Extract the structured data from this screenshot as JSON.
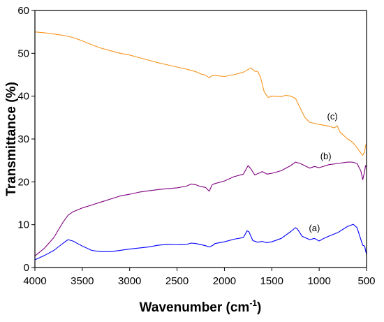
{
  "chart_data": {
    "type": "line",
    "xlabel": "Wavenumber (cm",
    "xlabel_sup": "-1",
    "xlabel_end": ")",
    "ylabel": "Transmittance (%)",
    "xlim": [
      4000,
      500
    ],
    "ylim": [
      0,
      60
    ],
    "x_ticks": [
      4000,
      3500,
      3000,
      2500,
      2000,
      1500,
      1000,
      500
    ],
    "y_ticks": [
      0,
      10,
      20,
      30,
      40,
      50,
      60
    ],
    "series": [
      {
        "label": "(a)",
        "label_pos": [
          1050,
          8.5
        ],
        "color": "#0000ff",
        "points": [
          [
            4000,
            1.8
          ],
          [
            3900,
            2.8
          ],
          [
            3800,
            4
          ],
          [
            3700,
            5.7
          ],
          [
            3650,
            6.5
          ],
          [
            3600,
            6.2
          ],
          [
            3500,
            5
          ],
          [
            3400,
            4
          ],
          [
            3300,
            3.7
          ],
          [
            3200,
            3.7
          ],
          [
            3000,
            4.3
          ],
          [
            2800,
            4.8
          ],
          [
            2700,
            5.2
          ],
          [
            2600,
            5.4
          ],
          [
            2500,
            5.3
          ],
          [
            2400,
            5.4
          ],
          [
            2350,
            5.7
          ],
          [
            2300,
            5.6
          ],
          [
            2200,
            5.1
          ],
          [
            2160,
            4.8
          ],
          [
            2120,
            5.2
          ],
          [
            2100,
            5.6
          ],
          [
            2000,
            6.0
          ],
          [
            1900,
            6.6
          ],
          [
            1800,
            7.0
          ],
          [
            1760,
            8.6
          ],
          [
            1740,
            8.3
          ],
          [
            1700,
            6.3
          ],
          [
            1650,
            5.9
          ],
          [
            1600,
            6.1
          ],
          [
            1560,
            5.8
          ],
          [
            1500,
            6.0
          ],
          [
            1400,
            6.8
          ],
          [
            1300,
            8.4
          ],
          [
            1250,
            9.3
          ],
          [
            1230,
            9.0
          ],
          [
            1180,
            7.3
          ],
          [
            1100,
            6.5
          ],
          [
            1050,
            6.8
          ],
          [
            1000,
            6.2
          ],
          [
            950,
            6.8
          ],
          [
            900,
            7.3
          ],
          [
            800,
            8.2
          ],
          [
            700,
            9.6
          ],
          [
            640,
            10.1
          ],
          [
            600,
            9.3
          ],
          [
            560,
            6.5
          ],
          [
            540,
            5.2
          ],
          [
            520,
            5.0
          ],
          [
            510,
            4.0
          ],
          [
            500,
            3.0
          ]
        ]
      },
      {
        "label": "(b)",
        "label_pos": [
          930,
          25.3
        ],
        "color": "#800080",
        "points": [
          [
            4000,
            2.7
          ],
          [
            3900,
            4.5
          ],
          [
            3800,
            7
          ],
          [
            3700,
            10.7
          ],
          [
            3650,
            12.2
          ],
          [
            3600,
            13
          ],
          [
            3500,
            13.9
          ],
          [
            3400,
            14.6
          ],
          [
            3300,
            15.3
          ],
          [
            3200,
            16
          ],
          [
            3100,
            16.7
          ],
          [
            3000,
            17.1
          ],
          [
            2900,
            17.6
          ],
          [
            2800,
            17.9
          ],
          [
            2700,
            18.2
          ],
          [
            2600,
            18.4
          ],
          [
            2500,
            18.6
          ],
          [
            2400,
            19.0
          ],
          [
            2350,
            19.5
          ],
          [
            2300,
            19.3
          ],
          [
            2250,
            18.9
          ],
          [
            2200,
            18.7
          ],
          [
            2160,
            17.8
          ],
          [
            2130,
            19.3
          ],
          [
            2100,
            19.6
          ],
          [
            2000,
            20.2
          ],
          [
            1900,
            21.2
          ],
          [
            1800,
            21.8
          ],
          [
            1750,
            23.8
          ],
          [
            1720,
            23.0
          ],
          [
            1680,
            21.6
          ],
          [
            1640,
            22.0
          ],
          [
            1600,
            22.4
          ],
          [
            1550,
            21.8
          ],
          [
            1500,
            22.0
          ],
          [
            1400,
            22.6
          ],
          [
            1300,
            23.8
          ],
          [
            1250,
            24.6
          ],
          [
            1200,
            24.3
          ],
          [
            1100,
            23.2
          ],
          [
            1050,
            23.6
          ],
          [
            1000,
            23.3
          ],
          [
            900,
            24.0
          ],
          [
            800,
            24.3
          ],
          [
            700,
            24.6
          ],
          [
            650,
            24.6
          ],
          [
            600,
            24.3
          ],
          [
            560,
            22.5
          ],
          [
            540,
            20.5
          ],
          [
            520,
            22.5
          ],
          [
            510,
            23.8
          ],
          [
            500,
            23.5
          ]
        ]
      },
      {
        "label": "(c)",
        "label_pos": [
          860,
          34.6
        ],
        "color": "#f7941d",
        "points": [
          [
            4000,
            55.0
          ],
          [
            3900,
            54.8
          ],
          [
            3800,
            54.5
          ],
          [
            3700,
            54.2
          ],
          [
            3600,
            53.7
          ],
          [
            3500,
            52.9
          ],
          [
            3400,
            52.0
          ],
          [
            3300,
            51.2
          ],
          [
            3200,
            50.6
          ],
          [
            3100,
            50.0
          ],
          [
            3000,
            49.6
          ],
          [
            2900,
            49.0
          ],
          [
            2800,
            48.4
          ],
          [
            2700,
            47.8
          ],
          [
            2600,
            47.3
          ],
          [
            2500,
            46.8
          ],
          [
            2400,
            46.3
          ],
          [
            2300,
            45.7
          ],
          [
            2250,
            45.2
          ],
          [
            2200,
            44.9
          ],
          [
            2160,
            44.3
          ],
          [
            2130,
            44.8
          ],
          [
            2100,
            44.8
          ],
          [
            2000,
            44.6
          ],
          [
            1900,
            45.0
          ],
          [
            1800,
            45.6
          ],
          [
            1720,
            46.6
          ],
          [
            1680,
            45.8
          ],
          [
            1650,
            45.8
          ],
          [
            1620,
            44.5
          ],
          [
            1580,
            41.0
          ],
          [
            1540,
            39.7
          ],
          [
            1500,
            40.0
          ],
          [
            1400,
            39.9
          ],
          [
            1350,
            40.2
          ],
          [
            1300,
            40.0
          ],
          [
            1250,
            39.5
          ],
          [
            1200,
            37.2
          ],
          [
            1150,
            35.0
          ],
          [
            1100,
            33.9
          ],
          [
            1000,
            33.4
          ],
          [
            900,
            33.0
          ],
          [
            840,
            32.6
          ],
          [
            810,
            33.1
          ],
          [
            780,
            31.6
          ],
          [
            700,
            30.0
          ],
          [
            650,
            29.3
          ],
          [
            600,
            28.0
          ],
          [
            560,
            26.7
          ],
          [
            540,
            26.2
          ],
          [
            520,
            27.0
          ],
          [
            510,
            28.5
          ],
          [
            500,
            28.8
          ]
        ]
      }
    ]
  }
}
